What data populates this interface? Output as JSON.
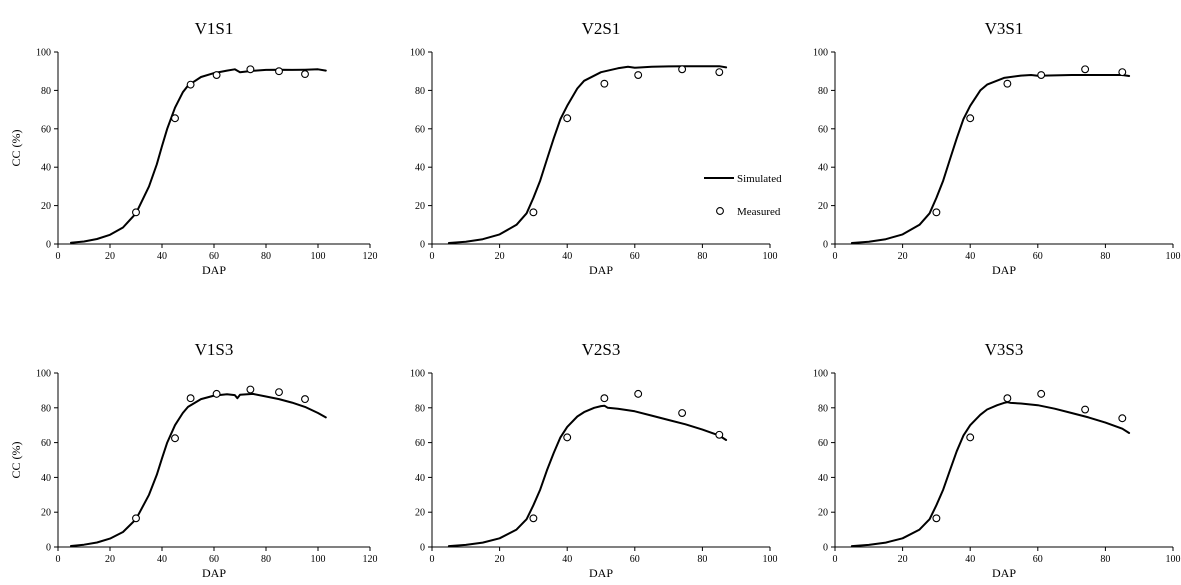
{
  "colors": {
    "line": "#000000",
    "marker_fill": "#ffffff",
    "marker_stroke": "#000000",
    "axis": "#000000"
  },
  "legend": {
    "simulated_label": "Simulated",
    "measured_label": "Measured",
    "placement": "right-center of panel V2S1"
  },
  "chart_data": [
    {
      "type": "scatter",
      "title": "V1S1",
      "xlabel": "DAP",
      "ylabel": "CC (%)",
      "xlim": [
        0,
        120
      ],
      "ylim": [
        0,
        100
      ],
      "xticks": [
        0,
        20,
        40,
        60,
        80,
        100,
        120
      ],
      "yticks": [
        0,
        20,
        40,
        60,
        80,
        100
      ],
      "grid": false,
      "series": [
        {
          "name": "Simulated",
          "kind": "line",
          "x": [
            5,
            10,
            15,
            20,
            25,
            30,
            35,
            38,
            40,
            42,
            45,
            48,
            50,
            55,
            60,
            65,
            68,
            70,
            75,
            80,
            85,
            90,
            95,
            100,
            103
          ],
          "y": [
            0.6,
            1.3,
            2.6,
            4.8,
            8.6,
            16,
            30,
            41.5,
            51,
            60,
            71,
            79,
            82.5,
            87,
            89,
            90.3,
            91,
            89.5,
            90.2,
            90.7,
            90.8,
            90.7,
            90.8,
            91,
            90.3
          ]
        },
        {
          "name": "Measured",
          "kind": "scatter",
          "x": [
            30,
            45,
            51,
            61,
            74,
            85,
            95
          ],
          "y": [
            16.5,
            65.5,
            83,
            88,
            91,
            90,
            88.5
          ]
        }
      ]
    },
    {
      "type": "scatter",
      "title": "V2S1",
      "xlabel": "DAP",
      "ylabel": "",
      "xlim": [
        0,
        100
      ],
      "ylim": [
        0,
        100
      ],
      "xticks": [
        0,
        20,
        40,
        60,
        80,
        100
      ],
      "yticks": [
        0,
        20,
        40,
        60,
        80,
        100
      ],
      "grid": false,
      "series": [
        {
          "name": "Simulated",
          "kind": "line",
          "x": [
            5,
            10,
            15,
            20,
            25,
            28,
            30,
            32,
            34,
            36,
            38,
            40,
            43,
            45,
            50,
            55,
            58,
            60,
            65,
            70,
            75,
            80,
            85,
            87
          ],
          "y": [
            0.5,
            1.2,
            2.5,
            5,
            10,
            16,
            24,
            33,
            44,
            55,
            65,
            72,
            81,
            85,
            89.5,
            91.5,
            92.3,
            91.8,
            92.3,
            92.5,
            92.6,
            92.6,
            92.6,
            92
          ]
        },
        {
          "name": "Measured",
          "kind": "scatter",
          "x": [
            30,
            40,
            51,
            61,
            74,
            85
          ],
          "y": [
            16.5,
            65.5,
            83.5,
            88,
            91,
            89.5
          ]
        }
      ]
    },
    {
      "type": "scatter",
      "title": "V3S1",
      "xlabel": "DAP",
      "ylabel": "",
      "xlim": [
        0,
        100
      ],
      "ylim": [
        0,
        100
      ],
      "xticks": [
        0,
        20,
        40,
        60,
        80,
        100
      ],
      "yticks": [
        0,
        20,
        40,
        60,
        80,
        100
      ],
      "grid": false,
      "series": [
        {
          "name": "Simulated",
          "kind": "line",
          "x": [
            5,
            10,
            15,
            20,
            25,
            28,
            30,
            32,
            34,
            36,
            38,
            40,
            43,
            45,
            50,
            55,
            58,
            60,
            65,
            70,
            75,
            80,
            85,
            87
          ],
          "y": [
            0.5,
            1.2,
            2.5,
            5,
            10,
            16,
            24,
            33,
            44,
            55,
            65,
            72,
            80,
            83,
            86.5,
            87.7,
            88,
            87.6,
            87.8,
            88,
            88,
            88,
            88,
            87.5
          ]
        },
        {
          "name": "Measured",
          "kind": "scatter",
          "x": [
            30,
            40,
            51,
            61,
            74,
            85
          ],
          "y": [
            16.5,
            65.5,
            83.5,
            88,
            91,
            89.5
          ]
        }
      ]
    },
    {
      "type": "scatter",
      "title": "V1S3",
      "xlabel": "DAP",
      "ylabel": "CC (%)",
      "xlim": [
        0,
        120
      ],
      "ylim": [
        0,
        100
      ],
      "xticks": [
        0,
        20,
        40,
        60,
        80,
        100,
        120
      ],
      "yticks": [
        0,
        20,
        40,
        60,
        80,
        100
      ],
      "grid": false,
      "series": [
        {
          "name": "Simulated",
          "kind": "line",
          "x": [
            5,
            10,
            15,
            20,
            25,
            30,
            35,
            38,
            40,
            42,
            45,
            48,
            50,
            55,
            60,
            65,
            68,
            69,
            70,
            75,
            80,
            85,
            90,
            95,
            100,
            103
          ],
          "y": [
            0.6,
            1.3,
            2.6,
            4.8,
            8.6,
            16,
            30,
            41.5,
            51,
            60,
            70,
            77,
            80.5,
            85,
            87,
            87.8,
            87.3,
            85.5,
            87.5,
            88,
            86.5,
            85,
            83,
            80.5,
            77,
            74.5
          ]
        },
        {
          "name": "Measured",
          "kind": "scatter",
          "x": [
            30,
            45,
            51,
            61,
            74,
            85,
            95
          ],
          "y": [
            16.5,
            62.5,
            85.5,
            88,
            90.5,
            89,
            85
          ]
        }
      ]
    },
    {
      "type": "scatter",
      "title": "V2S3",
      "xlabel": "DAP",
      "ylabel": "",
      "xlim": [
        0,
        100
      ],
      "ylim": [
        0,
        100
      ],
      "xticks": [
        0,
        20,
        40,
        60,
        80,
        100
      ],
      "yticks": [
        0,
        20,
        40,
        60,
        80,
        100
      ],
      "grid": false,
      "series": [
        {
          "name": "Simulated",
          "kind": "line",
          "x": [
            5,
            10,
            15,
            20,
            25,
            28,
            30,
            32,
            34,
            36,
            38,
            40,
            43,
            45,
            48,
            50,
            51,
            52,
            55,
            60,
            65,
            70,
            75,
            80,
            85,
            87
          ],
          "y": [
            0.5,
            1.2,
            2.5,
            5,
            10,
            16,
            24,
            33,
            44,
            54,
            63,
            69,
            75,
            77.5,
            80,
            81,
            81.2,
            80,
            79.5,
            78,
            75.5,
            73,
            70.5,
            67.5,
            64,
            61.5
          ]
        },
        {
          "name": "Measured",
          "kind": "scatter",
          "x": [
            30,
            40,
            51,
            61,
            74,
            85
          ],
          "y": [
            16.5,
            63,
            85.5,
            88,
            77,
            64.5
          ]
        }
      ]
    },
    {
      "type": "scatter",
      "title": "V3S3",
      "xlabel": "DAP",
      "ylabel": "",
      "xlim": [
        0,
        100
      ],
      "ylim": [
        0,
        100
      ],
      "xticks": [
        0,
        20,
        40,
        60,
        80,
        100
      ],
      "yticks": [
        0,
        20,
        40,
        60,
        80,
        100
      ],
      "grid": false,
      "series": [
        {
          "name": "Simulated",
          "kind": "line",
          "x": [
            5,
            10,
            15,
            20,
            25,
            28,
            30,
            32,
            34,
            36,
            38,
            40,
            43,
            45,
            48,
            50,
            51,
            52,
            55,
            60,
            65,
            70,
            75,
            80,
            85,
            87
          ],
          "y": [
            0.5,
            1.2,
            2.5,
            5,
            10,
            16,
            24,
            33,
            44,
            55,
            64,
            70,
            76,
            79,
            81.5,
            82.8,
            83.2,
            82.8,
            82.5,
            81.5,
            79.5,
            77,
            74.5,
            71.5,
            68,
            65.5
          ]
        },
        {
          "name": "Measured",
          "kind": "scatter",
          "x": [
            30,
            40,
            51,
            61,
            74,
            85
          ],
          "y": [
            16.5,
            63,
            85.5,
            88,
            79,
            74
          ]
        }
      ]
    }
  ]
}
